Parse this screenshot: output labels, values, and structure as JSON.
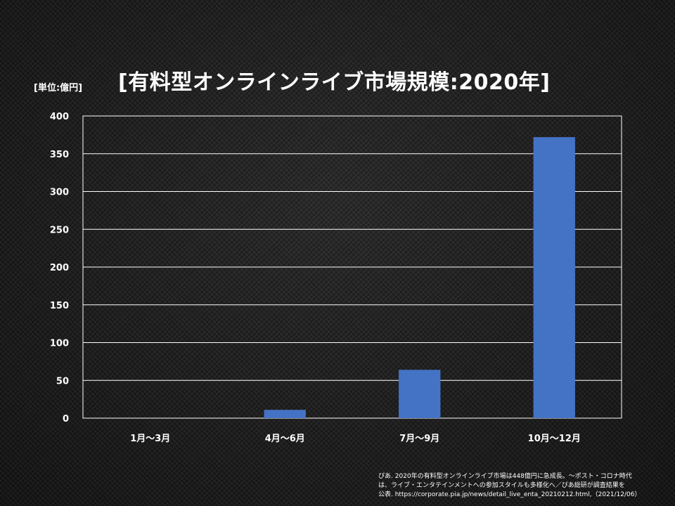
{
  "header": {
    "unit": "[単位:億円]",
    "title": "[有料型オンラインライブ市場規模:2020年]"
  },
  "source": {
    "line1": "ぴあ. 2020年の有料型オンラインライブ市場は448億円に急成長。～ポスト・コロナ時代",
    "line2": "は、ライブ・エンタテインメントへの参加スタイルも多様化へ／ぴあ総研が調査結果を",
    "line3": "公表. https://corporate.pia.jp/news/detail_live_enta_20210212.html,（2021/12/06）"
  },
  "colors": {
    "bar": "#4472C4",
    "gridline": "#ffffff",
    "text": "#ffffff"
  },
  "chart_data": {
    "type": "bar",
    "title": "[有料型オンラインライブ市場規模:2020年]",
    "ylabel": "[単位:億円]",
    "xlabel": "",
    "categories": [
      "1月～3月",
      "4月～6月",
      "7月～9月",
      "10月～12月"
    ],
    "values": [
      0,
      11,
      64,
      372
    ],
    "ylim": [
      0,
      400
    ],
    "yticks": [
      0,
      50,
      100,
      150,
      200,
      250,
      300,
      350,
      400
    ],
    "grid": true,
    "legend": "none"
  }
}
